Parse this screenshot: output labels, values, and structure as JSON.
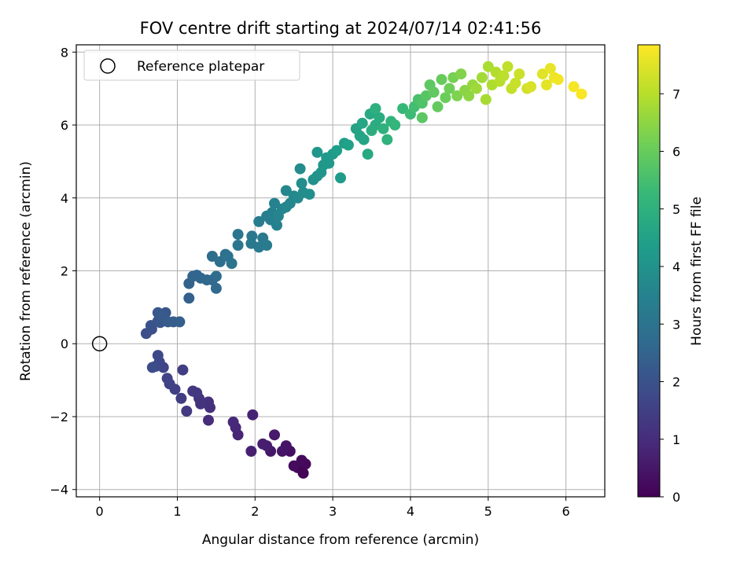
{
  "chart_data": {
    "type": "scatter",
    "title": "FOV centre drift starting at 2024/07/14 02:41:56",
    "xlabel": "Angular distance from reference (arcmin)",
    "ylabel": "Rotation from reference (arcmin)",
    "xlim": [
      -0.3,
      6.5
    ],
    "ylim": [
      -4.2,
      8.2
    ],
    "xticks": [
      0,
      1,
      2,
      3,
      4,
      5,
      6
    ],
    "yticks": [
      -4,
      -2,
      0,
      2,
      4,
      6,
      8
    ],
    "ytick_labels": [
      "−4",
      "−2",
      "0",
      "2",
      "4",
      "6",
      "8"
    ],
    "grid": true,
    "legend": {
      "placement": "top-left",
      "entries": [
        {
          "label": "Reference platepar",
          "marker": "open-circle"
        }
      ]
    },
    "reference_point": {
      "x": 0,
      "y": 0
    },
    "colorbar": {
      "label": "Hours from first FF file",
      "range": [
        0,
        7.85
      ],
      "ticks": [
        0,
        1,
        2,
        3,
        4,
        5,
        6,
        7
      ],
      "colormap": "viridis",
      "colormap_stops": [
        "#440154",
        "#482878",
        "#3e4989",
        "#31688e",
        "#26828e",
        "#1f9e89",
        "#35b779",
        "#6ece58",
        "#b5de2b",
        "#fde725"
      ]
    },
    "series": [
      {
        "points": [
          [
            2.62,
            -3.55,
            0.05
          ],
          [
            2.55,
            -3.4,
            0.1
          ],
          [
            2.65,
            -3.3,
            0.15
          ],
          [
            2.6,
            -3.2,
            0.2
          ],
          [
            2.5,
            -3.35,
            0.25
          ],
          [
            2.45,
            -2.95,
            0.3
          ],
          [
            2.4,
            -2.8,
            0.4
          ],
          [
            2.35,
            -2.95,
            0.45
          ],
          [
            2.2,
            -2.95,
            0.5
          ],
          [
            2.25,
            -2.5,
            0.55
          ],
          [
            2.15,
            -2.8,
            0.6
          ],
          [
            2.1,
            -2.75,
            0.65
          ],
          [
            1.95,
            -2.95,
            0.7
          ],
          [
            1.97,
            -1.95,
            0.75
          ],
          [
            1.78,
            -2.5,
            0.8
          ],
          [
            1.75,
            -2.3,
            0.85
          ],
          [
            1.72,
            -2.15,
            0.9
          ],
          [
            1.4,
            -2.1,
            1.0
          ],
          [
            1.42,
            -1.75,
            1.05
          ],
          [
            1.4,
            -1.6,
            1.1
          ],
          [
            1.28,
            -1.5,
            1.15
          ],
          [
            1.3,
            -1.65,
            1.2
          ],
          [
            1.2,
            -1.3,
            1.25
          ],
          [
            1.25,
            -1.35,
            1.3
          ],
          [
            1.12,
            -1.85,
            1.35
          ],
          [
            1.05,
            -1.5,
            1.4
          ],
          [
            1.07,
            -0.72,
            1.45
          ],
          [
            0.97,
            -1.25,
            1.5
          ],
          [
            0.9,
            -1.1,
            1.55
          ],
          [
            0.87,
            -0.95,
            1.6
          ],
          [
            0.82,
            -0.65,
            1.65
          ],
          [
            0.77,
            -0.5,
            1.7
          ],
          [
            0.75,
            -0.32,
            1.75
          ],
          [
            0.72,
            -0.62,
            1.8
          ],
          [
            0.68,
            -0.65,
            1.85
          ],
          [
            0.6,
            0.28,
            1.9
          ],
          [
            0.67,
            0.4,
            1.95
          ],
          [
            0.66,
            0.5,
            2.0
          ],
          [
            0.75,
            0.62,
            2.05
          ],
          [
            0.78,
            0.58,
            2.1
          ],
          [
            0.85,
            0.85,
            2.1
          ],
          [
            0.75,
            0.85,
            2.15
          ],
          [
            0.82,
            0.75,
            2.2
          ],
          [
            0.88,
            0.6,
            2.25
          ],
          [
            0.95,
            0.6,
            2.3
          ],
          [
            1.03,
            0.6,
            2.35
          ],
          [
            1.15,
            1.25,
            2.4
          ],
          [
            1.15,
            1.65,
            2.45
          ],
          [
            1.2,
            1.85,
            2.5
          ],
          [
            1.25,
            1.88,
            2.55
          ],
          [
            1.3,
            1.8,
            2.6
          ],
          [
            1.38,
            1.75,
            2.65
          ],
          [
            1.45,
            1.75,
            2.7
          ],
          [
            1.5,
            1.52,
            2.7
          ],
          [
            1.5,
            1.85,
            2.75
          ],
          [
            1.45,
            2.4,
            2.8
          ],
          [
            1.55,
            2.25,
            2.85
          ],
          [
            1.62,
            2.45,
            2.9
          ],
          [
            1.65,
            2.4,
            2.95
          ],
          [
            1.7,
            2.2,
            3.0
          ],
          [
            1.78,
            2.7,
            3.05
          ],
          [
            1.78,
            3.0,
            3.1
          ],
          [
            1.95,
            2.75,
            3.15
          ],
          [
            1.96,
            2.95,
            3.15
          ],
          [
            2.05,
            2.65,
            3.2
          ],
          [
            2.1,
            2.9,
            3.2
          ],
          [
            2.15,
            2.7,
            3.25
          ],
          [
            2.05,
            3.35,
            3.3
          ],
          [
            2.15,
            3.5,
            3.35
          ],
          [
            2.2,
            3.4,
            3.4
          ],
          [
            2.22,
            3.6,
            3.45
          ],
          [
            2.28,
            3.25,
            3.45
          ],
          [
            2.25,
            3.85,
            3.5
          ],
          [
            2.3,
            3.5,
            3.55
          ],
          [
            2.35,
            3.7,
            3.55
          ],
          [
            2.4,
            3.75,
            3.6
          ],
          [
            2.45,
            3.85,
            3.65
          ],
          [
            2.4,
            4.2,
            3.65
          ],
          [
            2.5,
            4.05,
            3.7
          ],
          [
            2.55,
            4.0,
            3.75
          ],
          [
            2.58,
            4.8,
            3.8
          ],
          [
            2.62,
            4.15,
            3.8
          ],
          [
            2.6,
            4.4,
            3.85
          ],
          [
            2.7,
            4.1,
            3.9
          ],
          [
            2.75,
            4.5,
            3.95
          ],
          [
            2.8,
            4.6,
            4.0
          ],
          [
            2.85,
            4.7,
            4.05
          ],
          [
            2.8,
            5.25,
            4.1
          ],
          [
            2.88,
            4.9,
            4.15
          ],
          [
            2.95,
            4.95,
            4.2
          ],
          [
            2.92,
            5.1,
            4.2
          ],
          [
            3.0,
            5.2,
            4.25
          ],
          [
            3.1,
            4.55,
            4.3
          ],
          [
            3.05,
            5.3,
            4.35
          ],
          [
            3.15,
            5.5,
            4.4
          ],
          [
            3.2,
            5.45,
            4.45
          ],
          [
            3.3,
            5.9,
            4.5
          ],
          [
            3.35,
            5.7,
            4.55
          ],
          [
            3.4,
            5.6,
            4.6
          ],
          [
            3.38,
            6.05,
            4.65
          ],
          [
            3.45,
            5.2,
            4.7
          ],
          [
            3.48,
            6.3,
            4.75
          ],
          [
            3.55,
            6.0,
            4.8
          ],
          [
            3.6,
            6.2,
            4.85
          ],
          [
            3.5,
            5.85,
            4.9
          ],
          [
            3.55,
            6.45,
            4.95
          ],
          [
            3.65,
            5.9,
            5.0
          ],
          [
            3.7,
            5.6,
            5.05
          ],
          [
            3.75,
            6.1,
            5.1
          ],
          [
            3.8,
            6.0,
            5.15
          ],
          [
            3.9,
            6.45,
            5.25
          ],
          [
            4.0,
            6.3,
            5.35
          ],
          [
            4.05,
            6.5,
            5.45
          ],
          [
            4.1,
            6.7,
            5.55
          ],
          [
            4.15,
            6.6,
            5.65
          ],
          [
            4.2,
            6.8,
            5.75
          ],
          [
            4.15,
            6.2,
            5.8
          ],
          [
            4.25,
            7.1,
            5.85
          ],
          [
            4.3,
            6.9,
            5.9
          ],
          [
            4.35,
            6.5,
            5.95
          ],
          [
            4.4,
            7.25,
            6.0
          ],
          [
            4.45,
            6.75,
            6.05
          ],
          [
            4.5,
            7.0,
            6.1
          ],
          [
            4.55,
            7.3,
            6.2
          ],
          [
            4.6,
            6.8,
            6.3
          ],
          [
            4.65,
            7.4,
            6.35
          ],
          [
            4.7,
            6.95,
            6.45
          ],
          [
            4.75,
            6.8,
            6.5
          ],
          [
            4.8,
            7.1,
            6.6
          ],
          [
            4.85,
            7.0,
            6.7
          ],
          [
            4.92,
            7.3,
            6.75
          ],
          [
            4.97,
            6.7,
            6.8
          ],
          [
            5.0,
            7.6,
            6.85
          ],
          [
            5.05,
            7.1,
            6.9
          ],
          [
            5.1,
            7.45,
            6.95
          ],
          [
            5.15,
            7.2,
            7.0
          ],
          [
            5.2,
            7.35,
            7.05
          ],
          [
            5.25,
            7.6,
            7.1
          ],
          [
            5.3,
            7.0,
            7.15
          ],
          [
            5.35,
            7.15,
            7.2
          ],
          [
            5.4,
            7.4,
            7.25
          ],
          [
            5.5,
            7.0,
            7.3
          ],
          [
            5.55,
            7.05,
            7.4
          ],
          [
            5.7,
            7.4,
            7.5
          ],
          [
            5.75,
            7.1,
            7.55
          ],
          [
            5.8,
            7.55,
            7.6
          ],
          [
            5.85,
            7.3,
            7.65
          ],
          [
            5.9,
            7.25,
            7.7
          ],
          [
            6.1,
            7.05,
            7.75
          ],
          [
            6.2,
            6.85,
            7.8
          ]
        ]
      }
    ]
  }
}
